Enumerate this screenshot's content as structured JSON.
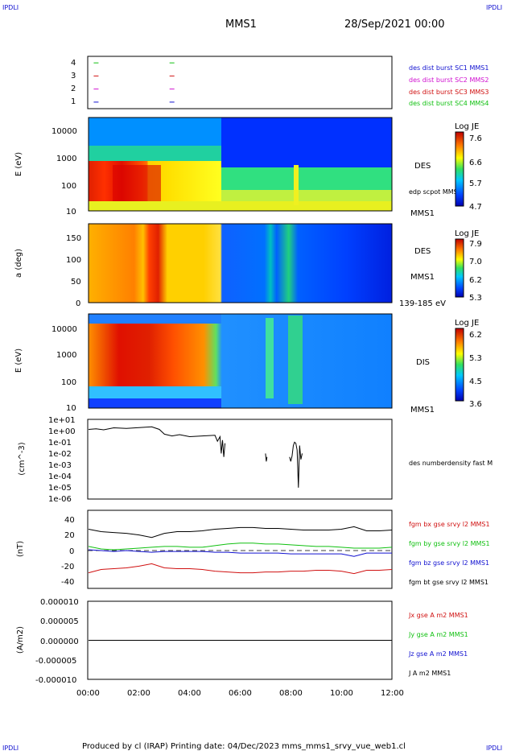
{
  "corner_label": "IPDLI",
  "header": {
    "spacecraft": "MMS1",
    "datetime": "28/Sep/2021 00:00"
  },
  "footer": {
    "text": "Produced by cl (IRAP)   Printing date: 04/Dec/2023   mms_mms1_srvy_vue_web1.cl"
  },
  "time_axis": {
    "ticks": [
      "00:00",
      "02:00",
      "04:00",
      "06:00",
      "08:00",
      "10:00",
      "12:00"
    ]
  },
  "colors": {
    "red": "#d01010",
    "green": "#10c010",
    "blue": "#1010d0",
    "magenta": "#d010d0",
    "black": "#000000"
  },
  "panels": {
    "burst": {
      "yticks": [
        "4",
        "3",
        "2",
        "1"
      ],
      "legend": [
        {
          "text": "des dist burst SC1 MMS1",
          "color": "#1010d0"
        },
        {
          "text": "des dist burst SC2 MMS2",
          "color": "#d010d0"
        },
        {
          "text": "des dist burst SC3 MMS3",
          "color": "#d01010"
        },
        {
          "text": "des dist burst SC4 MMS4",
          "color": "#10c010"
        }
      ]
    },
    "des_energy": {
      "ylabel": "E (eV)",
      "yticks": [
        "10000",
        "1000",
        "100",
        "10"
      ],
      "right_labels": {
        "instrument": "DES",
        "overlay": "edp scpot MMS1",
        "spacecraft": "MMS1"
      },
      "colorbar": {
        "title": "Log JE",
        "ticks": [
          "7.6",
          "6.6",
          "5.7",
          "4.7"
        ]
      }
    },
    "des_pitch": {
      "ylabel": "a (deg)",
      "yticks": [
        "150",
        "100",
        "50",
        "0"
      ],
      "right_labels": {
        "instrument": "DES",
        "spacecraft": "MMS1",
        "energy_range": "139-185 eV"
      },
      "colorbar": {
        "title": "Log JE",
        "ticks": [
          "7.9",
          "7.0",
          "6.2",
          "5.3"
        ]
      }
    },
    "dis_energy": {
      "ylabel": "E (eV)",
      "yticks": [
        "10000",
        "1000",
        "100",
        "10"
      ],
      "right_labels": {
        "instrument": "DIS",
        "spacecraft": "MMS1"
      },
      "colorbar": {
        "title": "Log JE",
        "ticks": [
          "6.2",
          "5.3",
          "4.5",
          "3.6"
        ]
      }
    },
    "density": {
      "ylabel": "(cm^-3)",
      "yticks": [
        "1e+01",
        "1e+00",
        "1e-01",
        "1e-02",
        "1e-03",
        "1e-04",
        "1e-05",
        "1e-06"
      ],
      "legend": "des numberdensity fast M"
    },
    "bfield": {
      "ylabel": "(nT)",
      "yticks": [
        "40",
        "20",
        "0",
        "-20",
        "-40"
      ],
      "legend": [
        {
          "text": "fgm bx gse srvy l2 MMS1",
          "color": "#d01010"
        },
        {
          "text": "fgm by gse srvy l2 MMS1",
          "color": "#10c010"
        },
        {
          "text": "fgm bz gse srvy l2 MMS1",
          "color": "#1010d0"
        },
        {
          "text": "fgm bt gse srvy l2 MMS1",
          "color": "#000000"
        }
      ]
    },
    "current": {
      "ylabel": "(A/m2)",
      "yticks": [
        "0.000010",
        "0.000005",
        "0.000000",
        "-0.000005",
        "-0.000010"
      ],
      "legend": [
        {
          "text": "Jx gse A m2 MMS1",
          "color": "#d01010"
        },
        {
          "text": "Jy gse A m2 MMS1",
          "color": "#10c010"
        },
        {
          "text": "Jz gse A m2 MMS1",
          "color": "#1010d0"
        },
        {
          "text": "J A m2 MMS1",
          "color": "#000000"
        }
      ]
    }
  },
  "chart_data": [
    {
      "type": "line",
      "panel": "bfield",
      "x_unit": "hours",
      "x": [
        0,
        0.5,
        1,
        1.5,
        2,
        2.5,
        3,
        3.5,
        4,
        4.5,
        5,
        5.5,
        6,
        6.5,
        7,
        7.5,
        8,
        8.5,
        9,
        9.5,
        10,
        10.5,
        11,
        11.5,
        12
      ],
      "ylim": [
        -45,
        50
      ],
      "series": [
        {
          "name": "fgm bx gse srvy l2 MMS1",
          "color": "#d01010",
          "values": [
            -26,
            -22,
            -21,
            -20,
            -18,
            -15,
            -20,
            -21,
            -21,
            -22,
            -24,
            -25,
            -26,
            -26,
            -25,
            -25,
            -24,
            -24,
            -23,
            -23,
            -24,
            -27,
            -23,
            -23,
            -22
          ]
        },
        {
          "name": "fgm by gse srvy l2 MMS1",
          "color": "#10c010",
          "values": [
            6,
            3,
            2,
            3,
            4,
            5,
            6,
            6,
            5,
            5,
            7,
            9,
            10,
            10,
            9,
            9,
            8,
            7,
            6,
            6,
            5,
            4,
            4,
            4,
            5
          ]
        },
        {
          "name": "fgm bz gse srvy l2 MMS1",
          "color": "#1010d0",
          "values": [
            2,
            1,
            0,
            1,
            0,
            -1,
            0,
            0,
            0,
            0,
            -1,
            -1,
            -2,
            -2,
            -2,
            -2,
            -3,
            -3,
            -3,
            -3,
            -3,
            -6,
            -2,
            -2,
            -2
          ]
        },
        {
          "name": "fgm bt gse srvy l2 MMS1",
          "color": "#000000",
          "values": [
            27,
            24,
            23,
            22,
            20,
            17,
            22,
            24,
            24,
            25,
            27,
            28,
            29,
            29,
            28,
            28,
            27,
            26,
            26,
            26,
            27,
            30,
            25,
            25,
            26
          ]
        }
      ]
    },
    {
      "type": "line",
      "panel": "density",
      "x_unit": "hours",
      "y_scale": "log",
      "ylim": [
        1e-06,
        10
      ],
      "series": [
        {
          "name": "des numberdensity fast M",
          "color": "#000000",
          "x": [
            0,
            0.3,
            0.6,
            1,
            1.5,
            2,
            2.5,
            2.8,
            3.0,
            3.3,
            3.6,
            4.0,
            4.5,
            5.0,
            5.1,
            5.2,
            5.25,
            5.3,
            5.35,
            5.4
          ],
          "values": [
            1.3,
            1.5,
            1.2,
            1.8,
            1.6,
            1.9,
            2.2,
            1.3,
            0.5,
            0.35,
            0.45,
            0.3,
            0.35,
            0.4,
            0.12,
            0.3,
            0.01,
            0.15,
            0.005,
            0.08
          ]
        },
        {
          "name": "des numberdensity fast M",
          "color": "#000000",
          "x": [
            7.0,
            7.03,
            7.06
          ],
          "values": [
            0.01,
            0.002,
            0.005
          ]
        },
        {
          "name": "des numberdensity fast M",
          "color": "#000000",
          "x": [
            7.95,
            8.0,
            8.05,
            8.1,
            8.15,
            8.2,
            8.25,
            8.3,
            8.35,
            8.4,
            8.45
          ],
          "values": [
            0.005,
            0.002,
            0.006,
            0.05,
            0.1,
            0.08,
            0.02,
            1e-05,
            0.05,
            0.003,
            0.01
          ]
        }
      ]
    },
    {
      "type": "line",
      "panel": "current",
      "x_unit": "hours",
      "x": [
        0,
        2,
        4,
        6,
        8,
        10,
        12
      ],
      "ylim": [
        -1e-05,
        1e-05
      ],
      "series": [
        {
          "name": "J A m2 MMS1",
          "color": "#000000",
          "values": [
            0,
            0,
            0,
            0,
            0,
            0,
            0
          ]
        }
      ]
    },
    {
      "type": "scatter",
      "panel": "burst",
      "x_unit": "hours",
      "ylim": [
        0.5,
        4.5
      ],
      "series": [
        {
          "name": "des dist burst SC4 MMS4",
          "color": "#10c010",
          "x": [
            0.3,
            3.3
          ],
          "values": [
            4,
            4
          ]
        },
        {
          "name": "des dist burst SC3 MMS3",
          "color": "#d01010",
          "x": [
            0.3,
            3.3
          ],
          "values": [
            3,
            3
          ]
        },
        {
          "name": "des dist burst SC2 MMS2",
          "color": "#d010d0",
          "x": [
            0.3,
            3.3
          ],
          "values": [
            2,
            2
          ]
        },
        {
          "name": "des dist burst SC1 MMS1",
          "color": "#1010d0",
          "x": [
            0.3,
            3.3
          ],
          "values": [
            1,
            1
          ]
        }
      ]
    }
  ]
}
